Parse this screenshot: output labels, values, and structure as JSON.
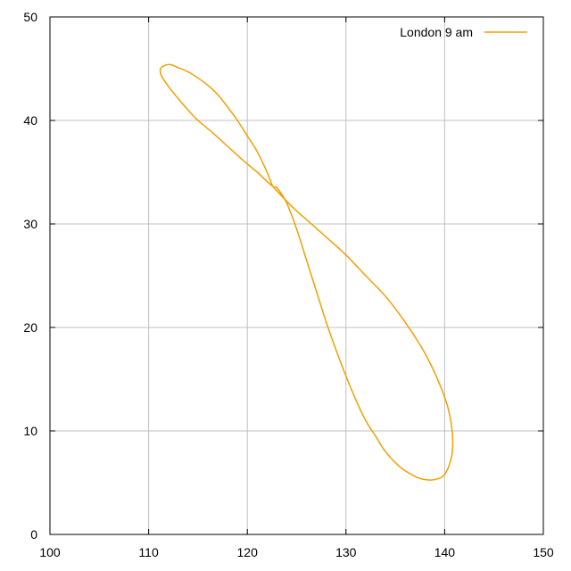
{
  "chart_data": {
    "type": "line",
    "title": "",
    "xlabel": "",
    "ylabel": "",
    "xlim": [
      100,
      150
    ],
    "ylim": [
      0,
      50
    ],
    "x_ticks": [
      "100",
      "110",
      "120",
      "130",
      "140",
      "150"
    ],
    "y_ticks": [
      "0",
      "10",
      "20",
      "30",
      "40",
      "50"
    ],
    "grid": true,
    "legend_position": "top-right",
    "series": [
      {
        "name": "London  9 am",
        "color": "#f0a000",
        "points": [
          [
            122.6,
            33.6
          ],
          [
            124.5,
            31.7
          ],
          [
            126.5,
            30.0
          ],
          [
            128.5,
            28.3
          ],
          [
            130.0,
            27.0
          ],
          [
            132.0,
            25.0
          ],
          [
            134.0,
            23.0
          ],
          [
            136.0,
            20.5
          ],
          [
            138.0,
            17.5
          ],
          [
            139.5,
            14.5
          ],
          [
            140.4,
            12.0
          ],
          [
            140.8,
            9.5
          ],
          [
            140.7,
            7.5
          ],
          [
            140.0,
            5.8
          ],
          [
            139.0,
            5.3
          ],
          [
            138.0,
            5.3
          ],
          [
            137.0,
            5.6
          ],
          [
            135.5,
            6.5
          ],
          [
            134.0,
            8.0
          ],
          [
            133.0,
            9.5
          ],
          [
            132.0,
            11.0
          ],
          [
            131.0,
            13.0
          ],
          [
            130.0,
            15.3
          ],
          [
            129.0,
            17.8
          ],
          [
            128.0,
            20.5
          ],
          [
            127.0,
            23.5
          ],
          [
            126.0,
            26.5
          ],
          [
            125.0,
            29.5
          ],
          [
            124.0,
            32.0
          ],
          [
            123.0,
            33.5
          ],
          [
            122.6,
            33.6
          ],
          [
            122.0,
            35.0
          ],
          [
            121.0,
            37.0
          ],
          [
            120.0,
            38.5
          ],
          [
            119.0,
            40.0
          ],
          [
            118.0,
            41.3
          ],
          [
            117.0,
            42.5
          ],
          [
            116.0,
            43.4
          ],
          [
            115.0,
            44.1
          ],
          [
            114.0,
            44.7
          ],
          [
            113.0,
            45.1
          ],
          [
            112.2,
            45.4
          ],
          [
            111.6,
            45.3
          ],
          [
            111.2,
            45.0
          ],
          [
            111.3,
            44.3
          ],
          [
            112.0,
            43.3
          ],
          [
            113.0,
            42.1
          ],
          [
            114.0,
            41.0
          ],
          [
            115.0,
            40.0
          ],
          [
            116.5,
            38.8
          ],
          [
            118.0,
            37.5
          ],
          [
            119.5,
            36.2
          ],
          [
            121.0,
            35.0
          ],
          [
            122.0,
            34.1
          ],
          [
            122.6,
            33.6
          ]
        ]
      }
    ]
  }
}
